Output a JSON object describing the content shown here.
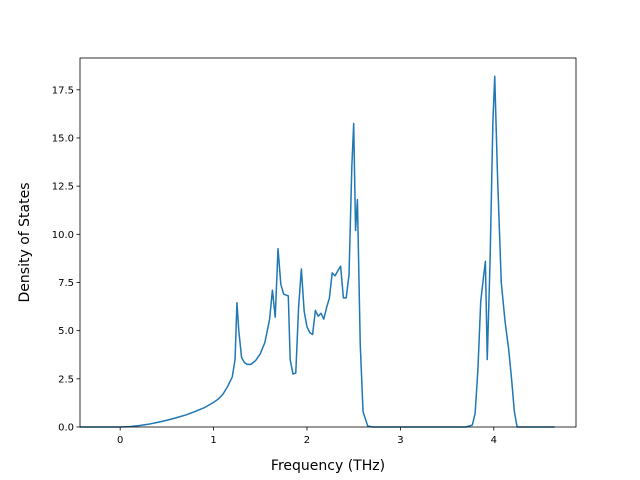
{
  "chart_data": {
    "type": "line",
    "title": "",
    "xlabel": "Frequency (THz)",
    "ylabel": "Density of States",
    "xlim": [
      -0.43,
      4.88
    ],
    "ylim": [
      0,
      19.15
    ],
    "xticks": [
      0,
      1,
      2,
      3,
      4
    ],
    "yticks": [
      0.0,
      2.5,
      5.0,
      7.5,
      10.0,
      12.5,
      15.0,
      17.5
    ],
    "xtick_labels": [
      "0",
      "1",
      "2",
      "3",
      "4"
    ],
    "ytick_labels": [
      "0.0",
      "2.5",
      "5.0",
      "7.5",
      "10.0",
      "12.5",
      "15.0",
      "17.5"
    ],
    "grid": false,
    "line_color": "#1f77b4",
    "series": [
      {
        "x": [
          -0.43,
          0.0,
          0.1,
          0.2,
          0.3,
          0.4,
          0.5,
          0.6,
          0.7,
          0.8,
          0.9,
          1.0,
          1.05,
          1.1,
          1.15,
          1.2,
          1.23,
          1.25,
          1.27,
          1.3,
          1.33,
          1.36,
          1.4,
          1.45,
          1.5,
          1.55,
          1.6,
          1.63,
          1.66,
          1.69,
          1.72,
          1.75,
          1.8,
          1.82,
          1.85,
          1.88,
          1.91,
          1.94,
          1.97,
          2.0,
          2.03,
          2.06,
          2.09,
          2.12,
          2.15,
          2.18,
          2.21,
          2.24,
          2.27,
          2.3,
          2.33,
          2.36,
          2.39,
          2.42,
          2.45,
          2.48,
          2.5,
          2.52,
          2.54,
          2.57,
          2.6,
          2.65,
          2.7,
          3.0,
          3.5,
          3.7,
          3.77,
          3.8,
          3.83,
          3.86,
          3.89,
          3.91,
          3.93,
          3.96,
          3.99,
          4.01,
          4.04,
          4.08,
          4.12,
          4.16,
          4.19,
          4.22,
          4.25,
          4.4,
          4.65
        ],
        "y": [
          0,
          0,
          0.02,
          0.07,
          0.14,
          0.24,
          0.35,
          0.48,
          0.62,
          0.8,
          1.0,
          1.28,
          1.45,
          1.7,
          2.1,
          2.6,
          3.5,
          6.45,
          5.0,
          3.6,
          3.35,
          3.25,
          3.25,
          3.45,
          3.8,
          4.4,
          5.6,
          7.1,
          5.7,
          9.25,
          7.4,
          6.9,
          6.8,
          3.5,
          2.75,
          2.8,
          6.2,
          8.2,
          6.0,
          5.2,
          4.9,
          4.8,
          6.05,
          5.75,
          5.9,
          5.6,
          6.2,
          6.7,
          8.0,
          7.85,
          8.1,
          8.35,
          6.7,
          6.7,
          7.9,
          13.5,
          15.75,
          10.2,
          11.8,
          4.3,
          0.8,
          0.05,
          0,
          0,
          0,
          0,
          0.1,
          0.7,
          3.0,
          6.5,
          7.8,
          8.6,
          3.5,
          8.6,
          15.8,
          18.2,
          13.0,
          7.5,
          5.5,
          4.0,
          2.5,
          0.8,
          0,
          0,
          0
        ]
      }
    ]
  }
}
